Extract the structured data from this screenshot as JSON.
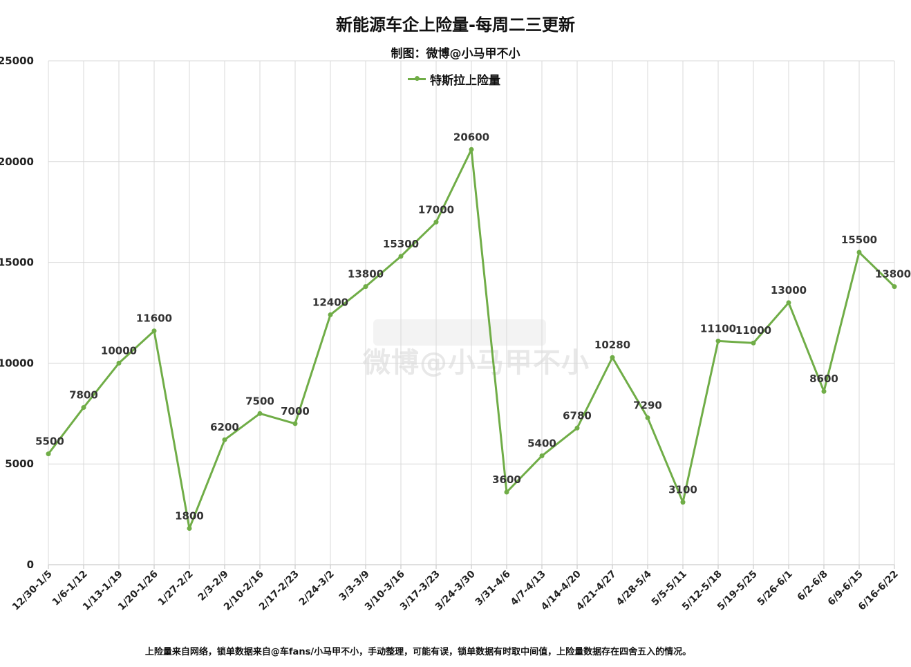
{
  "title": "新能源车企上险量-每周二三更新",
  "subtitle": "制图：微博@小马甲不小",
  "watermark": "微博@小马甲不小",
  "footnote": "上险量来自网络，锁单数据来自@车fans/小马甲不小，手动整理，可能有误，锁单数据有时取中间值，上险量数据存在四舍五入的情况。",
  "chart_data": {
    "type": "line",
    "title": "新能源车企上险量-每周二三更新",
    "subtitle": "制图：微博@小马甲不小",
    "xlabel": "",
    "ylabel": "",
    "ylim": [
      0,
      25000
    ],
    "yticks": [
      0,
      5000,
      10000,
      15000,
      20000,
      25000
    ],
    "grid": true,
    "legend_position": "top-center",
    "categories": [
      "12/30-1/5",
      "1/6-1/12",
      "1/13-1/19",
      "1/20-1/26",
      "1/27-2/2",
      "2/3-2/9",
      "2/10-2/16",
      "2/17-2/23",
      "2/24-3/2",
      "3/3-3/9",
      "3/10-3/16",
      "3/17-3/23",
      "3/24-3/30",
      "3/31-4/6",
      "4/7-4/13",
      "4/14-4/20",
      "4/21-4/27",
      "4/28-5/4",
      "5/5-5/11",
      "5/12-5/18",
      "5/19-5/25",
      "5/26-6/1",
      "6/2-6/8",
      "6/9-6/15",
      "6/16-6/22"
    ],
    "series": [
      {
        "name": "特斯拉上险量",
        "color": "#70ad47",
        "values": [
          5500,
          7800,
          10000,
          11600,
          1800,
          6200,
          7500,
          7000,
          12400,
          13800,
          15300,
          17000,
          20600,
          3600,
          5400,
          6780,
          10280,
          7290,
          3100,
          11100,
          11000,
          13000,
          8600,
          15500,
          13800
        ]
      }
    ]
  }
}
